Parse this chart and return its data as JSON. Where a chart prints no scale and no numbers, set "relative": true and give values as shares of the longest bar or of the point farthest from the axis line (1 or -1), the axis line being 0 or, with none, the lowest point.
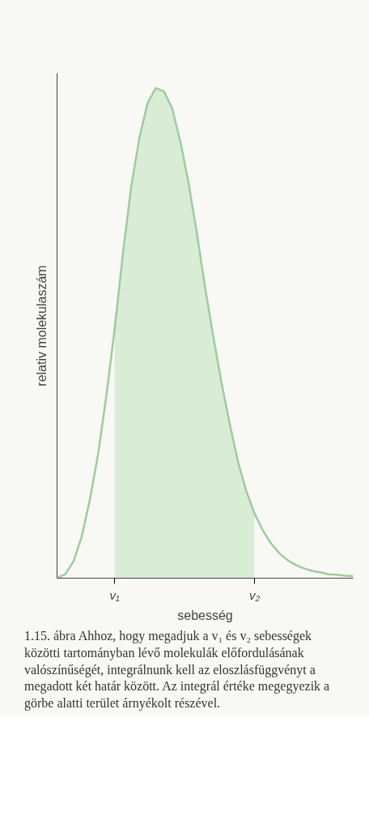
{
  "chart_data": {
    "type": "line",
    "relative": true,
    "xlabel": "sebesség",
    "ylabel": "relativ molekulaszám",
    "categories": [
      null,
      null,
      null,
      null,
      null,
      null,
      null,
      "v₁",
      null,
      null,
      null,
      null,
      null,
      null,
      null,
      null,
      null,
      null,
      null,
      null,
      null,
      null,
      null,
      null,
      "v₂",
      null,
      null,
      null,
      null,
      null,
      null,
      null,
      null,
      null,
      null,
      null,
      null
    ],
    "series": [
      {
        "type": "area",
        "color": "#d9ecd6",
        "values": [
          null,
          null,
          null,
          null,
          null,
          null,
          null,
          0.508,
          0.661,
          0.797,
          0.898,
          0.969,
          1.0,
          0.993,
          0.958,
          0.89,
          0.805,
          0.703,
          0.593,
          0.492,
          0.398,
          0.314,
          0.237,
          0.178,
          0.132,
          null,
          null,
          null,
          null,
          null,
          null,
          null,
          null,
          null,
          null,
          null,
          null
        ]
      },
      {
        "color": "#9fcb9f",
        "values": [
          0,
          0.008,
          0.034,
          0.085,
          0.161,
          0.254,
          0.373,
          0.508,
          0.661,
          0.797,
          0.898,
          0.969,
          1.0,
          0.993,
          0.958,
          0.89,
          0.805,
          0.703,
          0.593,
          0.492,
          0.398,
          0.314,
          0.237,
          0.178,
          0.132,
          0.098,
          0.071,
          0.051,
          0.037,
          0.027,
          0.02,
          0.015,
          0.012,
          0.008,
          0.007,
          0.005,
          0.004
        ]
      }
    ],
    "grid": false,
    "marker": "none",
    "line_style": "solid",
    "annotations": [
      "1.15. ábra Ahhoz, hogy megadjuk a v₁ és v₂ sebességek közötti tartományban lévő molekulák előfordulásának valószínűségét, integrálnunk kell az eloszlásfüggvényt a megadott két határ között. Az integrál értéke megegyezik a görbe alatti terület árnyékolt részével."
    ]
  }
}
